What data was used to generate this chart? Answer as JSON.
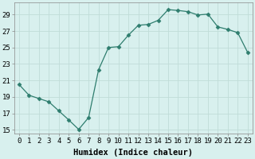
{
  "x": [
    0,
    1,
    2,
    3,
    4,
    5,
    6,
    7,
    8,
    9,
    10,
    11,
    12,
    13,
    14,
    15,
    16,
    17,
    18,
    19,
    20,
    21,
    22,
    23
  ],
  "y": [
    20.5,
    19.2,
    18.8,
    18.4,
    17.3,
    16.2,
    15.05,
    16.5,
    22.3,
    25.0,
    25.1,
    26.5,
    27.7,
    27.8,
    28.3,
    29.6,
    29.5,
    29.35,
    28.95,
    29.05,
    27.5,
    27.2,
    26.8,
    24.4
  ],
  "line_color": "#2e7d6e",
  "marker": "D",
  "marker_size": 2.5,
  "bg_color": "#d8f0ee",
  "grid_color": "#c0dcd8",
  "xlabel": "Humidex (Indice chaleur)",
  "ylim": [
    14.5,
    30.5
  ],
  "yticks": [
    15,
    17,
    19,
    21,
    23,
    25,
    27,
    29
  ],
  "xlim": [
    -0.5,
    23.5
  ],
  "label_fontsize": 7.5,
  "tick_fontsize": 6.5
}
